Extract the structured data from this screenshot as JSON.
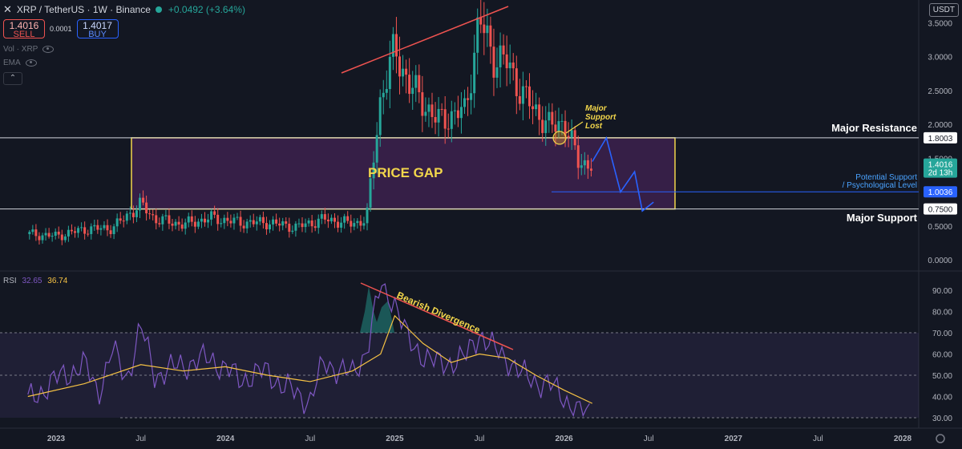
{
  "header": {
    "symbol": "XRP / TetherUS · 1W · Binance",
    "change": "+0.0492 (+3.64%)"
  },
  "trade": {
    "sell_price": "1.4016",
    "sell_label": "SELL",
    "spread": "0.0001",
    "buy_price": "1.4017",
    "buy_label": "BUY"
  },
  "indicators": {
    "vol": "Vol · XRP",
    "ema": "EMA"
  },
  "currency": "USDT",
  "rsi_legend": {
    "label": "RSI",
    "value": "32.65",
    "ma": "36.74"
  },
  "chart_data": [
    {
      "type": "candlestick",
      "title": "XRP / TetherUS · 1W · Binance",
      "y_ticks": [
        "3.5000",
        "3.0000",
        "2.5000",
        "2.0000",
        "1.5000",
        "1.0000",
        "0.5000",
        "0.0000"
      ],
      "ylim": [
        0,
        3.55
      ],
      "x_ticks": [
        "2023",
        "Jul",
        "2024",
        "Jul",
        "2025",
        "Jul",
        "2026",
        "Jul",
        "2027",
        "Jul",
        "2028"
      ],
      "price_anchors": [
        {
          "date": "2022-11",
          "price": 0.38
        },
        {
          "date": "2023-01",
          "price": 0.35
        },
        {
          "date": "2023-03",
          "price": 0.45
        },
        {
          "date": "2023-05",
          "price": 0.47
        },
        {
          "date": "2023-07",
          "price": 0.82
        },
        {
          "date": "2023-08",
          "price": 0.6
        },
        {
          "date": "2023-10",
          "price": 0.52
        },
        {
          "date": "2023-12",
          "price": 0.62
        },
        {
          "date": "2024-02",
          "price": 0.55
        },
        {
          "date": "2024-04",
          "price": 0.55
        },
        {
          "date": "2024-06",
          "price": 0.48
        },
        {
          "date": "2024-08",
          "price": 0.6
        },
        {
          "date": "2024-10",
          "price": 0.53
        },
        {
          "date": "2024-11",
          "price": 0.6
        },
        {
          "date": "2024-12",
          "price": 2.4
        },
        {
          "date": "2025-01",
          "price": 3.1
        },
        {
          "date": "2025-02",
          "price": 2.6
        },
        {
          "date": "2025-04",
          "price": 2.05
        },
        {
          "date": "2025-06",
          "price": 2.2
        },
        {
          "date": "2025-07",
          "price": 3.55
        },
        {
          "date": "2025-08",
          "price": 3.0
        },
        {
          "date": "2025-09",
          "price": 2.9
        },
        {
          "date": "2025-10",
          "price": 2.45
        },
        {
          "date": "2025-12",
          "price": 1.95
        },
        {
          "date": "2026-01",
          "price": 2.05
        },
        {
          "date": "2026-02",
          "price": 1.45
        },
        {
          "date": "2026-03",
          "price": 1.4016
        }
      ],
      "levels": [
        {
          "label": "Major Resistance",
          "value": "1.8003"
        },
        {
          "label": "Potential Support / Psychological Level",
          "value": "1.0036"
        },
        {
          "label": "Major Support",
          "value": "0.7500"
        }
      ],
      "current_price": {
        "value": "1.4016",
        "countdown": "2d 13h"
      },
      "annotations": [
        "PRICE GAP",
        "Major Support Lost"
      ],
      "projection": [
        {
          "date": "2026-03",
          "price": 1.45
        },
        {
          "date": "2026-04",
          "price": 1.8
        },
        {
          "date": "2026-05",
          "price": 1.0
        },
        {
          "date": "2026-06",
          "price": 1.3
        },
        {
          "date": "2026-07",
          "price": 0.72
        },
        {
          "date": "2026-07",
          "price": 0.85
        }
      ]
    },
    {
      "type": "line",
      "title": "RSI",
      "y_ticks": [
        "90.00",
        "80.00",
        "70.00",
        "60.00",
        "50.00",
        "40.00",
        "30.00"
      ],
      "ylim": [
        27,
        95
      ],
      "bands": {
        "upper": 70,
        "middle": 50,
        "lower": 30
      },
      "series": [
        {
          "name": "RSI",
          "values_by_date": [
            [
              "2022-11",
              38
            ],
            [
              "2023-01",
              48
            ],
            [
              "2023-03",
              55
            ],
            [
              "2023-04",
              42
            ],
            [
              "2023-05",
              62
            ],
            [
              "2023-06",
              48
            ],
            [
              "2023-07",
              73
            ],
            [
              "2023-08",
              50
            ],
            [
              "2023-10",
              55
            ],
            [
              "2023-12",
              58
            ],
            [
              "2024-02",
              48
            ],
            [
              "2024-04",
              52
            ],
            [
              "2024-05",
              45
            ],
            [
              "2024-07",
              38
            ],
            [
              "2024-08",
              56
            ],
            [
              "2024-10",
              50
            ],
            [
              "2024-11",
              62
            ],
            [
              "2024-12",
              92
            ],
            [
              "2025-01",
              85
            ],
            [
              "2025-02",
              65
            ],
            [
              "2025-04",
              55
            ],
            [
              "2025-06",
              58
            ],
            [
              "2025-07",
              70
            ],
            [
              "2025-08",
              62
            ],
            [
              "2025-09",
              58
            ],
            [
              "2025-10",
              50
            ],
            [
              "2025-12",
              45
            ],
            [
              "2026-01",
              40
            ],
            [
              "2026-02",
              32
            ],
            [
              "2026-03",
              32.65
            ]
          ]
        },
        {
          "name": "MA",
          "values_by_date": [
            [
              "2022-11",
              40
            ],
            [
              "2023-03",
              46
            ],
            [
              "2023-07",
              55
            ],
            [
              "2023-10",
              52
            ],
            [
              "2024-01",
              54
            ],
            [
              "2024-04",
              50
            ],
            [
              "2024-07",
              47
            ],
            [
              "2024-10",
              52
            ],
            [
              "2024-12",
              60
            ],
            [
              "2025-01",
              78
            ],
            [
              "2025-03",
              65
            ],
            [
              "2025-05",
              56
            ],
            [
              "2025-07",
              60
            ],
            [
              "2025-09",
              58
            ],
            [
              "2025-11",
              50
            ],
            [
              "2026-01",
              43
            ],
            [
              "2026-03",
              36.74
            ]
          ]
        }
      ],
      "annotations": [
        "Bearish Divergence"
      ]
    }
  ]
}
